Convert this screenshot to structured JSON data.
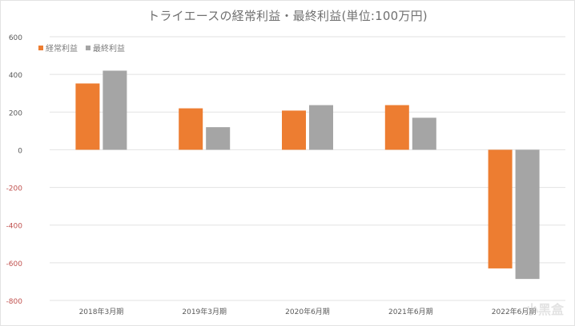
{
  "chart_data": {
    "type": "bar",
    "title": "トライエースの経常利益・最終利益(単位:100万円)",
    "xlabel": "",
    "ylabel": "",
    "categories": [
      "2018年3月期",
      "2019年3月期",
      "2020年6月期",
      "2021年6月期",
      "2022年6月期"
    ],
    "series": [
      {
        "name": "経常利益",
        "color": "#ed7d31",
        "values": [
          352,
          220,
          208,
          237,
          -630
        ]
      },
      {
        "name": "最終利益",
        "color": "#a5a5a5",
        "values": [
          420,
          120,
          237,
          170,
          -686
        ]
      }
    ],
    "ylim": [
      -800,
      600
    ],
    "yticks": [
      600,
      400,
      200,
      0,
      -200,
      -400,
      -600,
      -800
    ],
    "ytick_labels": [
      "600",
      "400",
      "200",
      "0",
      "-200",
      "-400",
      "-600",
      "-800"
    ],
    "negative_tick_color": "#c0504d",
    "grid": true,
    "legend_position": "top-left"
  },
  "watermark": "小黑盒"
}
